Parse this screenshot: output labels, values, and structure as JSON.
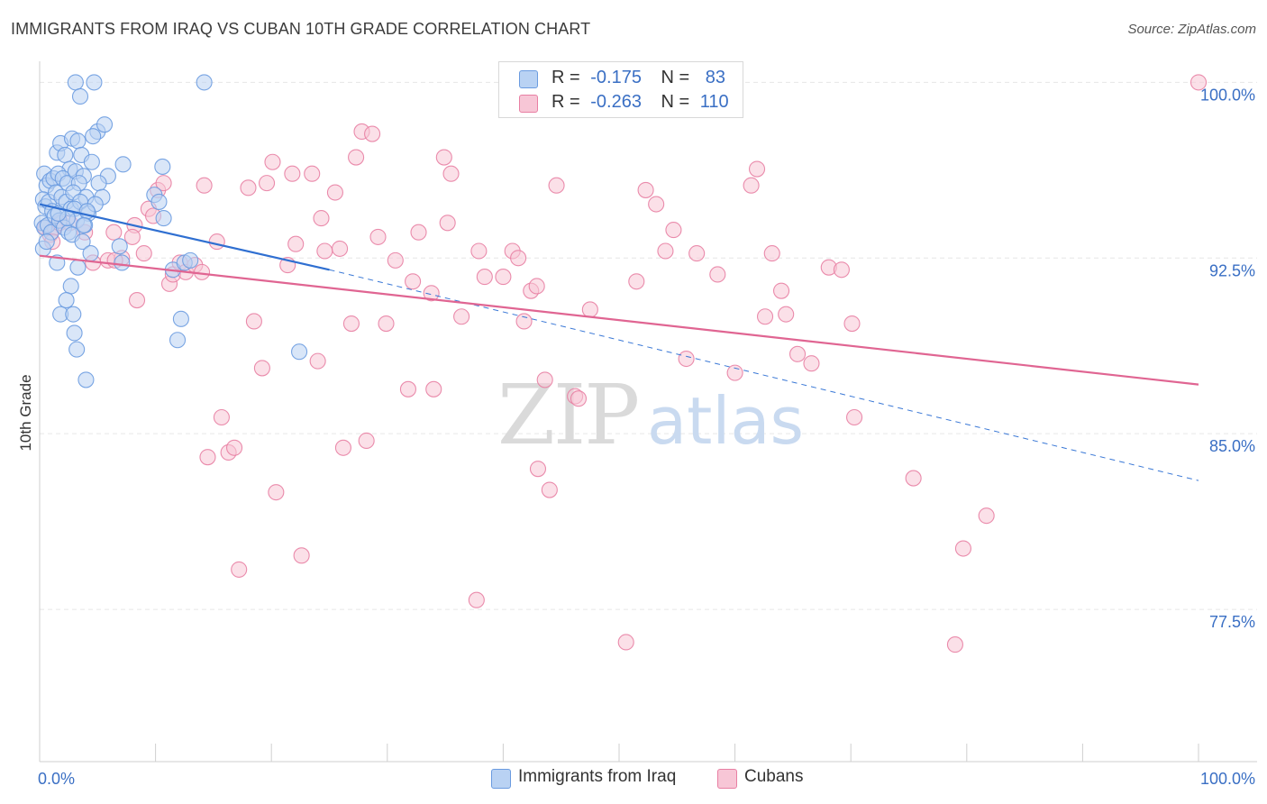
{
  "title": "IMMIGRANTS FROM IRAQ VS CUBAN 10TH GRADE CORRELATION CHART",
  "source": "Source: ZipAtlas.com",
  "watermark": {
    "zip": "ZIP",
    "atlas": "atlas"
  },
  "legend_stats": [
    {
      "r_label": "R =",
      "r_value": "-0.175",
      "n_label": "N =",
      "n_value": "83"
    },
    {
      "r_label": "R =",
      "r_value": "-0.263",
      "n_label": "N =",
      "n_value": "110"
    }
  ],
  "chart_data": {
    "type": "scatter",
    "title": "IMMIGRANTS FROM IRAQ VS CUBAN 10TH GRADE CORRELATION CHART",
    "xlabel": "",
    "ylabel": "10th Grade",
    "xlim": [
      0,
      100
    ],
    "ylim": [
      71.0,
      100.9
    ],
    "x_tick_labels": [
      "0.0%",
      "100.0%"
    ],
    "y_ticks": [
      77.5,
      85.0,
      92.5,
      100.0
    ],
    "y_tick_labels": [
      "77.5%",
      "85.0%",
      "92.5%",
      "100.0%"
    ],
    "grid": true,
    "legend_position": "bottom-center",
    "series": [
      {
        "name": "Immigrants from Iraq",
        "color": "#6a9be0",
        "fill": "#b9d2f3",
        "r": -0.175,
        "n": 83,
        "trend": {
          "x": [
            0,
            25
          ],
          "y": [
            94.8,
            92.0
          ]
        },
        "trend_ext": {
          "x": [
            25,
            100
          ],
          "y": [
            92.0,
            83.0
          ]
        },
        "points": [
          [
            0.4,
            96.1
          ],
          [
            0.6,
            95.6
          ],
          [
            0.9,
            95.8
          ],
          [
            1.2,
            95.9
          ],
          [
            0.3,
            95.0
          ],
          [
            0.5,
            94.7
          ],
          [
            0.8,
            94.9
          ],
          [
            1.1,
            94.5
          ],
          [
            0.2,
            94.0
          ],
          [
            0.4,
            93.8
          ],
          [
            0.7,
            93.9
          ],
          [
            1.0,
            93.6
          ],
          [
            0.3,
            92.9
          ],
          [
            0.6,
            93.2
          ],
          [
            1.5,
            97.0
          ],
          [
            1.8,
            97.4
          ],
          [
            2.2,
            96.9
          ],
          [
            2.6,
            96.3
          ],
          [
            1.6,
            96.1
          ],
          [
            2.0,
            95.9
          ],
          [
            2.4,
            95.7
          ],
          [
            1.4,
            95.3
          ],
          [
            1.9,
            95.1
          ],
          [
            2.3,
            94.9
          ],
          [
            2.7,
            94.6
          ],
          [
            1.3,
            94.3
          ],
          [
            1.7,
            94.1
          ],
          [
            2.1,
            93.8
          ],
          [
            2.5,
            93.6
          ],
          [
            1.5,
            92.3
          ],
          [
            2.8,
            97.6
          ],
          [
            3.3,
            97.5
          ],
          [
            3.6,
            96.9
          ],
          [
            3.1,
            96.2
          ],
          [
            3.8,
            96.0
          ],
          [
            3.4,
            95.7
          ],
          [
            2.9,
            95.3
          ],
          [
            4.0,
            95.1
          ],
          [
            3.5,
            94.9
          ],
          [
            3.0,
            94.6
          ],
          [
            4.2,
            94.4
          ],
          [
            3.2,
            94.1
          ],
          [
            3.9,
            93.9
          ],
          [
            2.8,
            93.5
          ],
          [
            3.7,
            93.2
          ],
          [
            3.3,
            92.1
          ],
          [
            2.7,
            91.3
          ],
          [
            2.3,
            90.7
          ],
          [
            1.8,
            90.1
          ],
          [
            3.0,
            89.3
          ],
          [
            3.2,
            88.6
          ],
          [
            4.0,
            87.3
          ],
          [
            2.9,
            90.1
          ],
          [
            2.4,
            94.2
          ],
          [
            3.1,
            100.0
          ],
          [
            3.5,
            99.4
          ],
          [
            4.7,
            100.0
          ],
          [
            5.0,
            97.9
          ],
          [
            4.6,
            97.7
          ],
          [
            5.6,
            98.2
          ],
          [
            4.5,
            96.6
          ],
          [
            5.9,
            96.0
          ],
          [
            5.1,
            95.7
          ],
          [
            5.4,
            95.1
          ],
          [
            4.8,
            94.8
          ],
          [
            4.1,
            94.5
          ],
          [
            3.8,
            93.9
          ],
          [
            4.4,
            92.7
          ],
          [
            7.2,
            96.5
          ],
          [
            6.9,
            93.0
          ],
          [
            7.1,
            92.3
          ],
          [
            10.6,
            96.4
          ],
          [
            9.9,
            95.2
          ],
          [
            10.3,
            94.9
          ],
          [
            10.7,
            94.2
          ],
          [
            11.5,
            92.0
          ],
          [
            12.5,
            92.3
          ],
          [
            14.2,
            100.0
          ],
          [
            12.2,
            89.9
          ],
          [
            11.9,
            89.0
          ],
          [
            22.4,
            88.5
          ],
          [
            13.0,
            92.4
          ],
          [
            1.6,
            94.4
          ]
        ]
      },
      {
        "name": "Cubans",
        "color": "#e87fa3",
        "fill": "#f7c6d6",
        "r": -0.263,
        "n": 110,
        "trend": {
          "x": [
            0,
            100
          ],
          "y": [
            92.6,
            87.1
          ]
        },
        "points": [
          [
            0.5,
            93.8
          ],
          [
            0.9,
            93.5
          ],
          [
            1.3,
            93.8
          ],
          [
            1.7,
            94.0
          ],
          [
            1.1,
            93.2
          ],
          [
            2.6,
            94.0
          ],
          [
            3.9,
            93.6
          ],
          [
            4.6,
            92.3
          ],
          [
            5.9,
            92.4
          ],
          [
            6.4,
            93.6
          ],
          [
            7.1,
            92.5
          ],
          [
            8.2,
            93.9
          ],
          [
            8.0,
            93.4
          ],
          [
            9.0,
            92.7
          ],
          [
            8.4,
            90.7
          ],
          [
            9.4,
            94.6
          ],
          [
            9.8,
            94.3
          ],
          [
            10.2,
            95.4
          ],
          [
            10.7,
            95.7
          ],
          [
            11.2,
            91.4
          ],
          [
            11.5,
            91.8
          ],
          [
            12.1,
            92.3
          ],
          [
            12.6,
            91.9
          ],
          [
            13.4,
            92.2
          ],
          [
            14.2,
            95.6
          ],
          [
            14.5,
            84.0
          ],
          [
            15.3,
            93.2
          ],
          [
            15.7,
            85.7
          ],
          [
            16.3,
            84.2
          ],
          [
            16.8,
            84.4
          ],
          [
            17.2,
            79.2
          ],
          [
            18.0,
            95.5
          ],
          [
            18.5,
            89.8
          ],
          [
            19.2,
            87.8
          ],
          [
            19.6,
            95.7
          ],
          [
            20.1,
            96.6
          ],
          [
            20.4,
            82.5
          ],
          [
            21.4,
            92.2
          ],
          [
            21.8,
            96.1
          ],
          [
            22.1,
            93.1
          ],
          [
            22.6,
            79.8
          ],
          [
            23.5,
            96.1
          ],
          [
            24.3,
            94.2
          ],
          [
            24.0,
            88.1
          ],
          [
            24.6,
            92.8
          ],
          [
            25.5,
            95.3
          ],
          [
            25.9,
            92.9
          ],
          [
            26.2,
            84.4
          ],
          [
            26.9,
            89.7
          ],
          [
            27.3,
            96.8
          ],
          [
            27.8,
            97.9
          ],
          [
            28.2,
            84.7
          ],
          [
            28.7,
            97.8
          ],
          [
            29.2,
            93.4
          ],
          [
            29.9,
            89.7
          ],
          [
            30.7,
            92.4
          ],
          [
            31.8,
            86.9
          ],
          [
            32.2,
            91.5
          ],
          [
            32.7,
            93.6
          ],
          [
            33.8,
            91.0
          ],
          [
            34.0,
            86.9
          ],
          [
            34.9,
            96.8
          ],
          [
            35.5,
            96.1
          ],
          [
            35.2,
            94.0
          ],
          [
            36.4,
            90.0
          ],
          [
            37.7,
            77.9
          ],
          [
            37.9,
            92.8
          ],
          [
            38.4,
            91.7
          ],
          [
            40.0,
            91.7
          ],
          [
            40.8,
            92.8
          ],
          [
            41.3,
            92.5
          ],
          [
            41.8,
            89.8
          ],
          [
            42.4,
            91.1
          ],
          [
            42.9,
            91.3
          ],
          [
            43.0,
            83.5
          ],
          [
            43.6,
            87.3
          ],
          [
            44.0,
            82.6
          ],
          [
            44.6,
            95.6
          ],
          [
            46.2,
            86.6
          ],
          [
            46.5,
            86.5
          ],
          [
            47.5,
            90.3
          ],
          [
            50.6,
            76.1
          ],
          [
            51.5,
            91.5
          ],
          [
            52.3,
            95.4
          ],
          [
            53.2,
            94.8
          ],
          [
            54.0,
            92.8
          ],
          [
            54.7,
            93.7
          ],
          [
            55.8,
            88.2
          ],
          [
            56.7,
            92.7
          ],
          [
            58.5,
            91.8
          ],
          [
            60.0,
            87.6
          ],
          [
            61.9,
            96.3
          ],
          [
            61.4,
            95.6
          ],
          [
            62.6,
            90.0
          ],
          [
            63.2,
            92.7
          ],
          [
            64.0,
            91.1
          ],
          [
            64.4,
            90.1
          ],
          [
            65.4,
            88.4
          ],
          [
            66.6,
            88.0
          ],
          [
            68.1,
            92.1
          ],
          [
            69.2,
            92.0
          ],
          [
            70.1,
            89.7
          ],
          [
            70.3,
            85.7
          ],
          [
            75.4,
            83.1
          ],
          [
            79.0,
            76.0
          ],
          [
            79.7,
            80.1
          ],
          [
            81.7,
            81.5
          ],
          [
            100.0,
            100.0
          ],
          [
            14.0,
            91.9
          ],
          [
            6.5,
            92.4
          ]
        ]
      }
    ]
  }
}
